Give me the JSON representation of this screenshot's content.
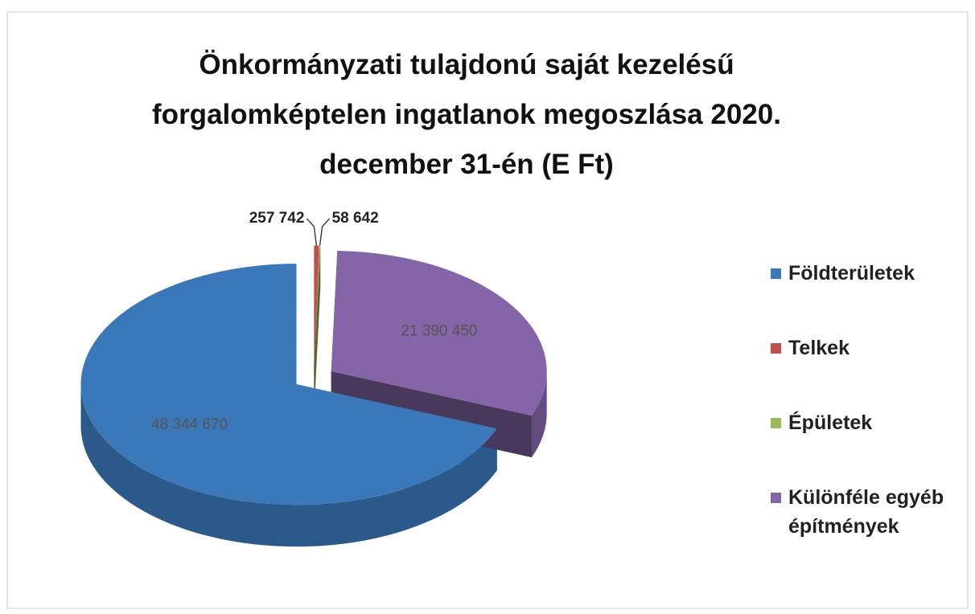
{
  "chart_data": {
    "type": "pie3d",
    "title": "Önkormányzati tulajdonú saját kezelésű forgalomképtelen ingatlanok megoszlása 2020. december 31-én (E Ft)",
    "categories": [
      "Földterületek",
      "Telkek",
      "Épületek",
      "Különféle egyéb építmények"
    ],
    "values": [
      48344670,
      257742,
      58642,
      21390450
    ],
    "value_labels": [
      "48 344 670",
      "257 742",
      "58 642",
      "21 390 450"
    ],
    "colors": [
      "#3a78b9",
      "#c0504d",
      "#9bbb59",
      "#8466a8"
    ],
    "legend": "right"
  }
}
